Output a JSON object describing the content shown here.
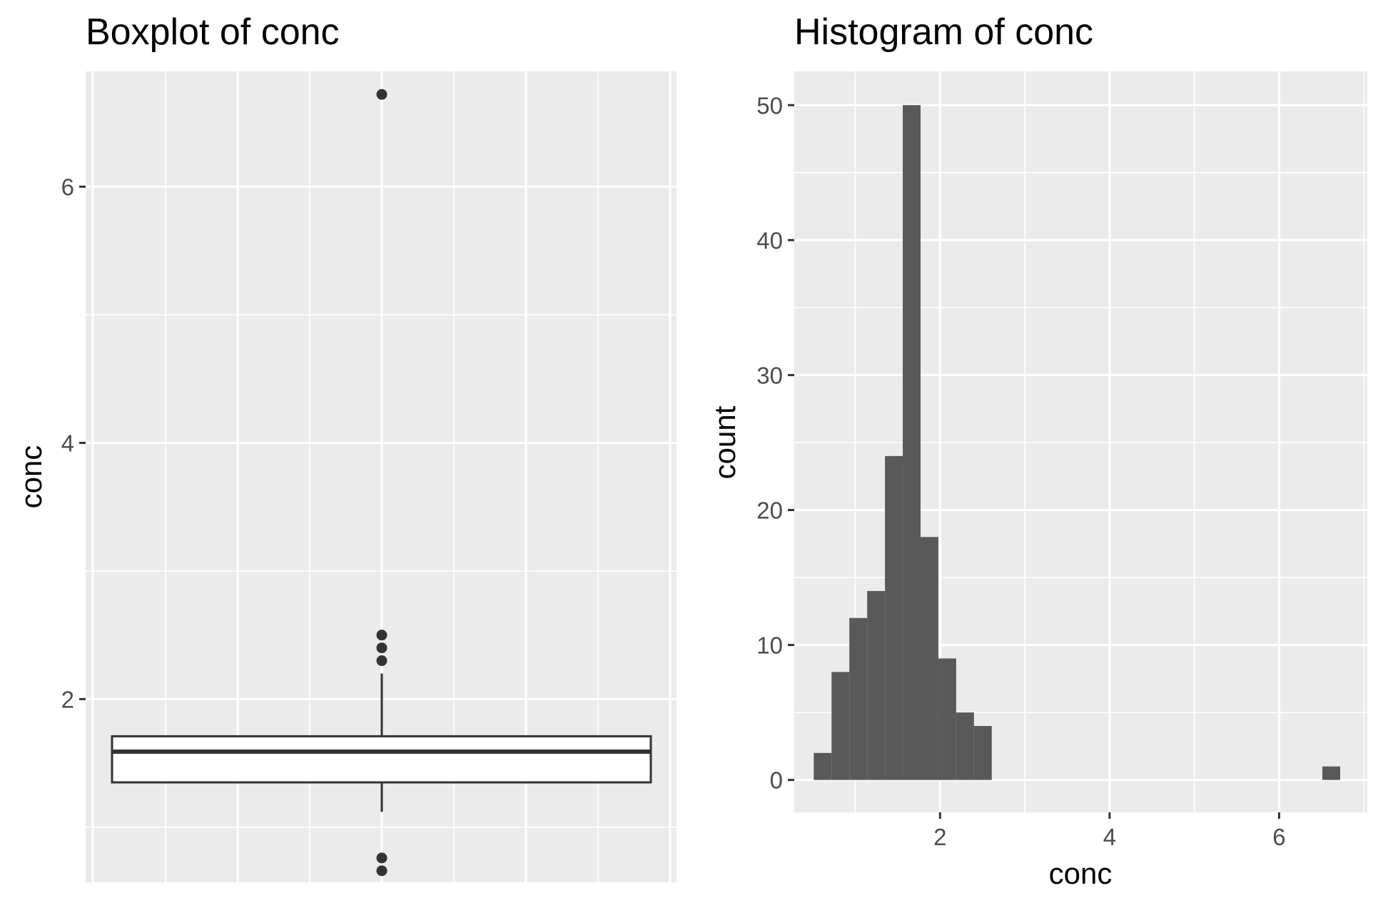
{
  "chart_data": [
    {
      "type": "boxplot",
      "title": "Boxplot of conc",
      "ylabel": "conc",
      "xlabel": "",
      "ylim": [
        0.57,
        6.9
      ],
      "y_ticks": [
        2,
        4,
        6
      ],
      "y_tick_labels": [
        "2",
        "4",
        "6"
      ],
      "grid": true,
      "box": {
        "min": 1.12,
        "q1": 1.35,
        "median": 1.59,
        "q3": 1.71,
        "max": 2.2,
        "outliers": [
          6.72,
          2.5,
          2.4,
          2.3,
          0.76,
          0.66
        ]
      }
    },
    {
      "type": "histogram",
      "title": "Histogram of conc",
      "xlabel": "conc",
      "ylabel": "count",
      "xlim": [
        0.28,
        7.04
      ],
      "ylim": [
        -2.4,
        52.5
      ],
      "x_ticks": [
        2,
        4,
        6
      ],
      "x_tick_labels": [
        "2",
        "4",
        "6"
      ],
      "y_ticks": [
        0,
        10,
        20,
        30,
        40,
        50
      ],
      "y_tick_labels": [
        "0",
        "10",
        "20",
        "30",
        "40",
        "50"
      ],
      "grid": true,
      "bins": [
        {
          "x0": 0.51,
          "x1": 0.72,
          "count": 2
        },
        {
          "x0": 0.72,
          "x1": 0.93,
          "count": 8
        },
        {
          "x0": 0.93,
          "x1": 1.14,
          "count": 12
        },
        {
          "x0": 1.14,
          "x1": 1.35,
          "count": 14
        },
        {
          "x0": 1.35,
          "x1": 1.56,
          "count": 24
        },
        {
          "x0": 1.56,
          "x1": 1.77,
          "count": 50
        },
        {
          "x0": 1.77,
          "x1": 1.98,
          "count": 18
        },
        {
          "x0": 1.98,
          "x1": 2.19,
          "count": 9
        },
        {
          "x0": 2.19,
          "x1": 2.4,
          "count": 5
        },
        {
          "x0": 2.4,
          "x1": 2.61,
          "count": 4
        },
        {
          "x0": 6.51,
          "x1": 6.72,
          "count": 1
        }
      ],
      "bar_color": "#595959"
    }
  ]
}
